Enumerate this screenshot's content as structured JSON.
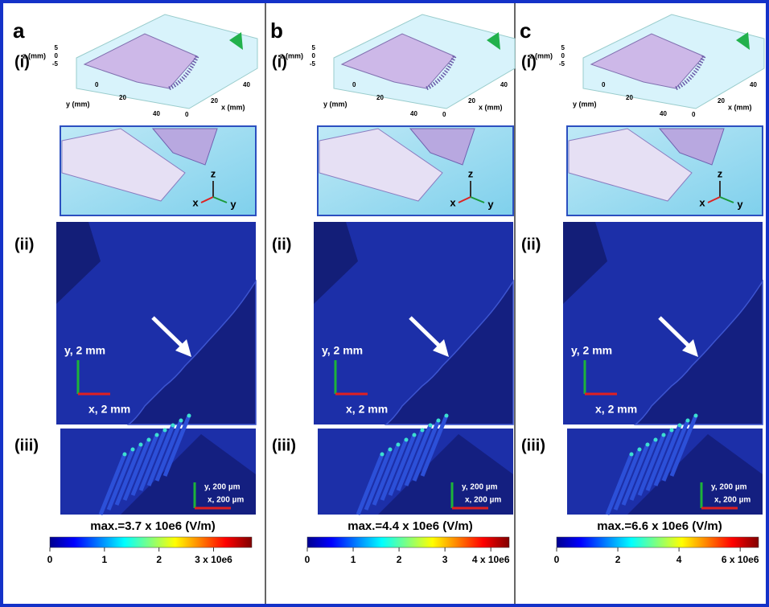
{
  "panels": [
    {
      "letter": "a",
      "i_label": "(i)",
      "plot3d": {
        "z_label": "z (mm)",
        "y_label": "y (mm)",
        "x_label": "x (mm)",
        "z_ticks": [
          5,
          0,
          -5
        ],
        "y_ticks": [
          0,
          20,
          40
        ],
        "x_ticks": [
          0,
          20,
          40
        ]
      },
      "zoom_axes": {
        "z": "z",
        "x": "x",
        "y": "y"
      },
      "ii_label": "(ii)",
      "scale_ii": {
        "y": "y, 2 mm",
        "x": "x, 2 mm"
      },
      "iii_label": "(iii)",
      "scale_iii": {
        "y": "y, 200 µm",
        "x": "x, 200 µm"
      },
      "max_label": "max.=3.7 x 10e6 (V/m)",
      "colorbar": {
        "range": [
          0,
          3.7
        ],
        "ticks": [
          0,
          1,
          2,
          {
            "value": 3,
            "label": "3 x 10e6"
          }
        ]
      }
    },
    {
      "letter": "b",
      "i_label": "(i)",
      "plot3d": {
        "z_label": "z (mm)",
        "y_label": "y (mm)",
        "x_label": "x (mm)",
        "z_ticks": [
          5,
          0,
          -5
        ],
        "y_ticks": [
          0,
          20,
          40
        ],
        "x_ticks": [
          0,
          20,
          40
        ]
      },
      "zoom_axes": {
        "z": "z",
        "x": "x",
        "y": "y"
      },
      "ii_label": "(ii)",
      "scale_ii": {
        "y": "y, 2 mm",
        "x": "x, 2 mm"
      },
      "iii_label": "(iii)",
      "scale_iii": {
        "y": "y, 200 µm",
        "x": "x, 200 µm"
      },
      "max_label": "max.=4.4 x 10e6 (V/m)",
      "colorbar": {
        "range": [
          0,
          4.4
        ],
        "ticks": [
          0,
          1,
          2,
          3,
          {
            "value": 4,
            "label": "4 x 10e6"
          }
        ]
      }
    },
    {
      "letter": "c",
      "i_label": "(i)",
      "plot3d": {
        "z_label": "z (mm)",
        "y_label": "y (mm)",
        "x_label": "x (mm)",
        "z_ticks": [
          5,
          0,
          -5
        ],
        "y_ticks": [
          0,
          20,
          40
        ],
        "x_ticks": [
          0,
          20,
          40
        ]
      },
      "zoom_axes": {
        "z": "z",
        "x": "x",
        "y": "y"
      },
      "ii_label": "(ii)",
      "scale_ii": {
        "y": "y, 2 mm",
        "x": "x, 2 mm"
      },
      "iii_label": "(iii)",
      "scale_iii": {
        "y": "y, 200 µm",
        "x": "x, 200 µm"
      },
      "max_label": "max.=6.6 x 10e6 (V/m)",
      "colorbar": {
        "range": [
          0,
          6.6
        ],
        "ticks": [
          0,
          2,
          4,
          {
            "value": 6,
            "label": "6 x 10e6"
          }
        ]
      }
    }
  ]
}
